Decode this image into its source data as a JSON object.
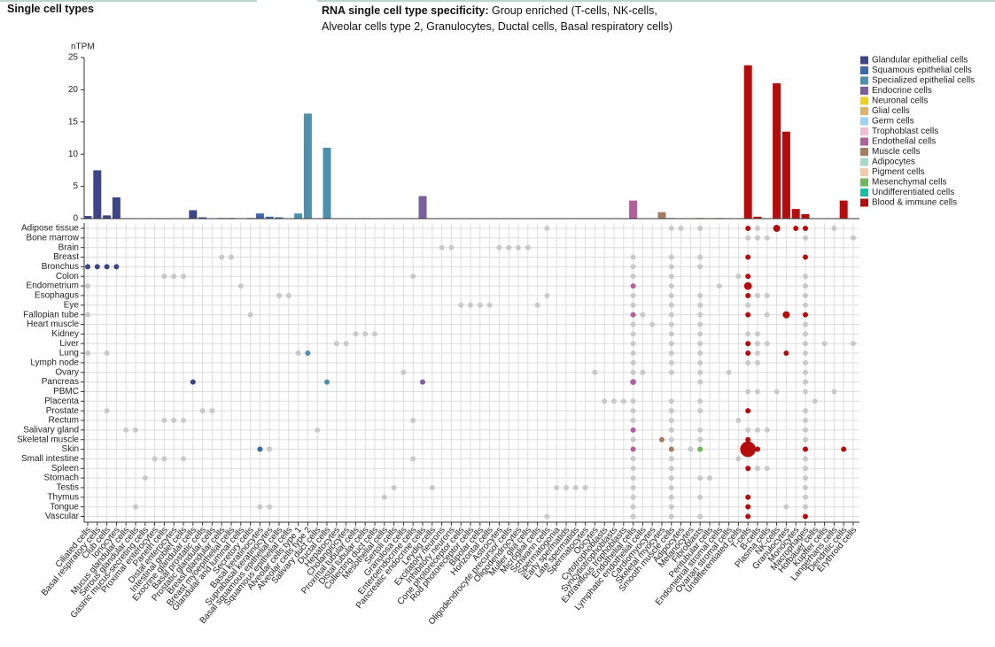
{
  "header": {
    "title": "Single cell types",
    "specificity_label": "RNA single cell type specificity:",
    "specificity": "Group enriched (T-cells, NK-cells, Alveolar cells type 2, Granulocytes, Ductal cells, Basal respiratory cells)"
  },
  "chart_data": [
    {
      "type": "bar",
      "y_label": "nTPM",
      "categories": [
        "Ciliated cells",
        "Basal respiratory cells",
        "Club cells",
        "Ionocytes",
        "Mucus glandular cells",
        "Serous glandular cells",
        "Gastric mucus-secreting cells",
        "Proximal enterocytes",
        "Paneth cells",
        "Distal enterocytes",
        "Intestinal goblet cells",
        "Exocrine glandular cells",
        "Basal prostatic cells",
        "Prostatic glandular cells",
        "Breast glandular cells",
        "Breast myoepithelial cells",
        "Glandular and luminal cells",
        "Secretory cells",
        "Basal keratinocytes",
        "Suprabasal keratinocytes",
        "Basal squamous epithelial cells",
        "Squamous epithelial cells",
        "Alveolar cells type 1",
        "Alveolar cells type 2",
        "Salivary duct cells",
        "Ductal cells",
        "Hepatocytes",
        "Cholangiocytes",
        "Proximal tubular cells",
        "Distal tubular cells",
        "Collecting duct cells",
        "Mesothelial cells",
        "Sertoli cells",
        "Granulosa cells",
        "Enteroendocrine cells",
        "Pancreatic endocrine cells",
        "Leydig cells",
        "Excitatory neurons",
        "Inhibitory neurons",
        "Cone photoreceptor cells",
        "Rod photoreceptor cells",
        "Bipolar cells",
        "Horizontal cells",
        "Astrocytes",
        "Oligodendrocyte precursor cells",
        "Oligodendrocytes",
        "Muller glia cells",
        "Microglial cells",
        "Schwann cells",
        "Spermatogonia",
        "Early spermatids",
        "Late spermatids",
        "Spermatocytes",
        "Oocytes",
        "Cytotrophoblasts",
        "Syncytiotrophoblasts",
        "Extravillous trophoblasts",
        "Endothelial cells",
        "Lymphatic endothelial cells",
        "Cardiomyocytes",
        "Skeletal myocytes",
        "Smooth muscle cells",
        "Adipocytes",
        "Melanocytes",
        "Fibroblasts",
        "Peritubular cells",
        "Endometrial stromal cells",
        "Ovarian stromal cells",
        "Undifferentiated cells",
        "T-cells",
        "B-cells",
        "Plasma cells",
        "NK-cells",
        "Granulocytes",
        "Monocytes",
        "Macrophages",
        "Hofbauer cells",
        "Kupffer cells",
        "Langerhans cells",
        "Dendritic cells",
        "Erythroid cells"
      ],
      "values": [
        0.4,
        7.5,
        0.5,
        3.3,
        0,
        0,
        0,
        0,
        0,
        0,
        0,
        1.3,
        0.2,
        0,
        0.1,
        0.1,
        0,
        0.1,
        0.8,
        0.3,
        0.2,
        0,
        0.8,
        16.3,
        0,
        11,
        0,
        0,
        0,
        0,
        0,
        0,
        0,
        0,
        0,
        3.5,
        0,
        0,
        0,
        0,
        0,
        0,
        0,
        0,
        0,
        0,
        0,
        0,
        0,
        0,
        0,
        0,
        0,
        0,
        0,
        0,
        0,
        2.8,
        0,
        0,
        1,
        0.1,
        0,
        0,
        0.1,
        0,
        0.1,
        0,
        0,
        23.8,
        0.3,
        0,
        21,
        13.5,
        1.5,
        0.7,
        0,
        0,
        0,
        2.8,
        0
      ],
      "colors": [
        "#3b4587",
        "#3b4587",
        "#3b4587",
        "#3b4587",
        "#3b4587",
        "#3b4587",
        "#3b4587",
        "#3b4587",
        "#3b4587",
        "#3b4587",
        "#3b4587",
        "#3b4587",
        "#3b4587",
        "#3b4587",
        "#3b4587",
        "#3b4587",
        "#3b4587",
        "#3b4587",
        "#3d65b0",
        "#3d65b0",
        "#3d65b0",
        "#3d65b0",
        "#4e8fae",
        "#4e8fae",
        "#4e8fae",
        "#4e8fae",
        "#4e8fae",
        "#4e8fae",
        "#4e8fae",
        "#4e8fae",
        "#4e8fae",
        "#4e8fae",
        "#4e8fae",
        "#4e8fae",
        "#7b5e9e",
        "#7b5e9e",
        "#7b5e9e",
        "#f0d01c",
        "#f0d01c",
        "#f0d01c",
        "#f0d01c",
        "#f0d01c",
        "#f0d01c",
        "#dfb06a",
        "#dfb06a",
        "#dfb06a",
        "#dfb06a",
        "#dfb06a",
        "#dfb06a",
        "#9dd3f0",
        "#9dd3f0",
        "#9dd3f0",
        "#9dd3f0",
        "#9dd3f0",
        "#f2bcd6",
        "#f2bcd6",
        "#f2bcd6",
        "#b1619a",
        "#b1619a",
        "#a47d60",
        "#a47d60",
        "#a47d60",
        "#a8d8c8",
        "#f3c9a8",
        "#6cb85a",
        "#6cb85a",
        "#6cb85a",
        "#6cb85a",
        "#14bfa3",
        "#b30d0d",
        "#b30d0d",
        "#b30d0d",
        "#b30d0d",
        "#b30d0d",
        "#b30d0d",
        "#b30d0d",
        "#b30d0d",
        "#b30d0d",
        "#b30d0d",
        "#b30d0d",
        "#b30d0d"
      ],
      "ylim": [
        0,
        25
      ],
      "yticks": [
        0,
        5,
        10,
        15,
        20,
        25
      ],
      "legend": [
        {
          "name": "Glandular epithelial cells",
          "color": "#3b4587"
        },
        {
          "name": "Squamous epithelial cells",
          "color": "#3d65b0"
        },
        {
          "name": "Specialized epithelial cells",
          "color": "#4e8fae"
        },
        {
          "name": "Endocrine cells",
          "color": "#7b5e9e"
        },
        {
          "name": "Neuronal cells",
          "color": "#f0d01c"
        },
        {
          "name": "Glial cells",
          "color": "#dfb06a"
        },
        {
          "name": "Germ cells",
          "color": "#9dd3f0"
        },
        {
          "name": "Trophoblast cells",
          "color": "#f2bcd6"
        },
        {
          "name": "Endothelial cells",
          "color": "#b1619a"
        },
        {
          "name": "Muscle cells",
          "color": "#a47d60"
        },
        {
          "name": "Adipocytes",
          "color": "#a8d8c8"
        },
        {
          "name": "Pigment cells",
          "color": "#f3c9a8"
        },
        {
          "name": "Mesenchymal cells",
          "color": "#6cb85a"
        },
        {
          "name": "Undifferentiated cells",
          "color": "#14bfa3"
        },
        {
          "name": "Blood & immune cells",
          "color": "#b30d0d"
        }
      ]
    },
    {
      "type": "dot_matrix",
      "gray": "#c9c9c9",
      "rows": [
        {
          "name": "Adipose tissue",
          "cells": [
            48,
            61,
            62,
            64,
            69,
            70,
            72,
            74,
            75,
            78
          ],
          "values": [
            0.3,
            0.3,
            0.3,
            0.3,
            2,
            0.3,
            5,
            2,
            2,
            0.3
          ]
        },
        {
          "name": "Bone marrow",
          "cells": [
            69,
            70,
            71,
            75,
            80
          ],
          "values": [
            0.3,
            0.3,
            0.3,
            0.3,
            0.3
          ]
        },
        {
          "name": "Brain",
          "cells": [
            37,
            38,
            43,
            44,
            45,
            46
          ],
          "values": [
            0.3,
            0.3,
            0.3,
            0.3,
            0.3,
            0.3
          ]
        },
        {
          "name": "Breast",
          "cells": [
            14,
            15,
            57,
            61,
            64,
            69,
            75
          ],
          "values": [
            0.3,
            0.3,
            0.3,
            0.3,
            0.3,
            2,
            2
          ]
        },
        {
          "name": "Bronchus",
          "cells": [
            0,
            1,
            2,
            3,
            57,
            61,
            64
          ],
          "values": [
            2,
            2,
            2,
            2,
            0.3,
            0.3,
            0.3
          ]
        },
        {
          "name": "Colon",
          "cells": [
            8,
            9,
            10,
            34,
            57,
            61,
            68,
            69,
            75
          ],
          "values": [
            0.3,
            0.3,
            0.3,
            0.3,
            0.3,
            0.3,
            0.3,
            2,
            0.3
          ]
        },
        {
          "name": "Endometrium",
          "cells": [
            0,
            16,
            57,
            61,
            66,
            69,
            75
          ],
          "values": [
            0.3,
            0.3,
            2,
            0.3,
            0.3,
            6,
            0.3
          ]
        },
        {
          "name": "Esophagus",
          "cells": [
            20,
            21,
            48,
            57,
            61,
            64,
            69,
            70,
            71,
            75
          ],
          "values": [
            0.3,
            0.3,
            0.3,
            0.3,
            0.3,
            0.3,
            2,
            0.3,
            0.3,
            0.3
          ]
        },
        {
          "name": "Eye",
          "cells": [
            39,
            40,
            41,
            42,
            47,
            57,
            61,
            64,
            69,
            75
          ],
          "values": [
            0.3,
            0.3,
            0.3,
            0.3,
            0.3,
            0.3,
            0.3,
            0.3,
            0.3,
            0.3
          ]
        },
        {
          "name": "Fallopian tube",
          "cells": [
            0,
            17,
            57,
            58,
            61,
            64,
            69,
            71,
            73,
            75
          ],
          "values": [
            0.3,
            0.3,
            2,
            0.3,
            0.3,
            0.3,
            2,
            0.3,
            5,
            2
          ]
        },
        {
          "name": "Heart muscle",
          "cells": [
            57,
            59,
            61,
            64,
            75
          ],
          "values": [
            0.3,
            0.3,
            0.3,
            0.3,
            0.3
          ]
        },
        {
          "name": "Kidney",
          "cells": [
            28,
            29,
            30,
            57,
            61,
            64,
            69,
            70,
            75
          ],
          "values": [
            0.3,
            0.3,
            0.3,
            0.3,
            0.3,
            0.3,
            0.3,
            0.3,
            0.3
          ]
        },
        {
          "name": "Liver",
          "cells": [
            26,
            27,
            57,
            61,
            64,
            69,
            70,
            71,
            75,
            77,
            80
          ],
          "values": [
            0.3,
            0.3,
            0.3,
            0.3,
            0.3,
            2,
            0.3,
            0.3,
            0.3,
            0.3,
            0.3
          ]
        },
        {
          "name": "Lung",
          "cells": [
            0,
            2,
            22,
            23,
            57,
            61,
            64,
            69,
            70,
            73,
            75
          ],
          "values": [
            0.3,
            0.3,
            0.3,
            2,
            0.3,
            0.3,
            0.3,
            2,
            0.3,
            2,
            0.3
          ]
        },
        {
          "name": "Lymph node",
          "cells": [
            57,
            61,
            64,
            69,
            70,
            75
          ],
          "values": [
            0.3,
            0.3,
            0.3,
            0.3,
            0.3,
            0.3
          ]
        },
        {
          "name": "Ovary",
          "cells": [
            33,
            53,
            57,
            58,
            61,
            64,
            67,
            75
          ],
          "values": [
            0.3,
            0.3,
            0.3,
            0.3,
            0.3,
            0.3,
            0.3,
            0.3
          ]
        },
        {
          "name": "Pancreas",
          "cells": [
            11,
            25,
            35,
            57,
            64,
            75
          ],
          "values": [
            2,
            2,
            2,
            3.5,
            0.3,
            0.3
          ]
        },
        {
          "name": "PBMC",
          "cells": [
            69,
            70,
            72,
            75,
            78
          ],
          "values": [
            0.3,
            0.3,
            0.3,
            0.3,
            0.3
          ]
        },
        {
          "name": "Placenta",
          "cells": [
            54,
            55,
            56,
            57,
            61,
            64,
            76
          ],
          "values": [
            0.3,
            0.3,
            0.3,
            0.3,
            0.3,
            0.3,
            0.3
          ]
        },
        {
          "name": "Prostate",
          "cells": [
            2,
            12,
            13,
            57,
            61,
            64,
            69,
            75
          ],
          "values": [
            0.3,
            0.3,
            0.3,
            0.3,
            0.3,
            0.3,
            2,
            0.3
          ]
        },
        {
          "name": "Rectum",
          "cells": [
            8,
            9,
            10,
            34,
            57,
            61,
            68,
            75
          ],
          "values": [
            0.3,
            0.3,
            0.3,
            0.3,
            0.3,
            0.3,
            0.3,
            0.3
          ]
        },
        {
          "name": "Salivary gland",
          "cells": [
            4,
            5,
            24,
            57,
            61,
            64,
            69,
            70,
            71,
            75
          ],
          "values": [
            0.3,
            0.3,
            0.3,
            2,
            0.3,
            0.3,
            0.3,
            0.3,
            0.3,
            0.3
          ]
        },
        {
          "name": "Skeletal muscle",
          "cells": [
            57,
            60,
            61,
            64,
            69,
            75
          ],
          "values": [
            0.3,
            2,
            0.3,
            0.3,
            2,
            0.3
          ]
        },
        {
          "name": "Skin",
          "cells": [
            18,
            19,
            57,
            61,
            63,
            64,
            69,
            70,
            75,
            79
          ],
          "values": [
            2,
            0.3,
            2,
            2,
            0.3,
            2,
            24,
            2,
            2,
            2
          ]
        },
        {
          "name": "Small intestine",
          "cells": [
            7,
            8,
            10,
            34,
            57,
            61,
            68,
            75
          ],
          "values": [
            0.3,
            0.3,
            0.3,
            0.3,
            0.3,
            0.3,
            0.3,
            0.3
          ]
        },
        {
          "name": "Spleen",
          "cells": [
            57,
            61,
            69,
            70,
            71,
            75
          ],
          "values": [
            0.3,
            0.3,
            2,
            0.3,
            0.3,
            0.3
          ]
        },
        {
          "name": "Stomach",
          "cells": [
            6,
            57,
            61,
            64,
            65,
            75
          ],
          "values": [
            0.3,
            0.3,
            0.3,
            0.3,
            0.3,
            0.3
          ]
        },
        {
          "name": "Testis",
          "cells": [
            32,
            36,
            49,
            50,
            51,
            52,
            57,
            61,
            75
          ],
          "values": [
            0.3,
            0.3,
            0.3,
            0.3,
            0.3,
            0.3,
            0.3,
            0.3,
            0.3
          ]
        },
        {
          "name": "Thymus",
          "cells": [
            31,
            57,
            61,
            64,
            69,
            75
          ],
          "values": [
            0.3,
            0.3,
            0.3,
            0.3,
            2,
            0.3
          ]
        },
        {
          "name": "Tongue",
          "cells": [
            5,
            18,
            19,
            57,
            61,
            69,
            73,
            75
          ],
          "values": [
            0.3,
            0.3,
            0.3,
            0.3,
            0.3,
            2,
            0.3,
            0.3
          ]
        },
        {
          "name": "Vascular",
          "cells": [
            48,
            57,
            61,
            64,
            69,
            75
          ],
          "values": [
            0.3,
            0.3,
            0.3,
            0.3,
            2,
            2
          ]
        }
      ]
    }
  ]
}
